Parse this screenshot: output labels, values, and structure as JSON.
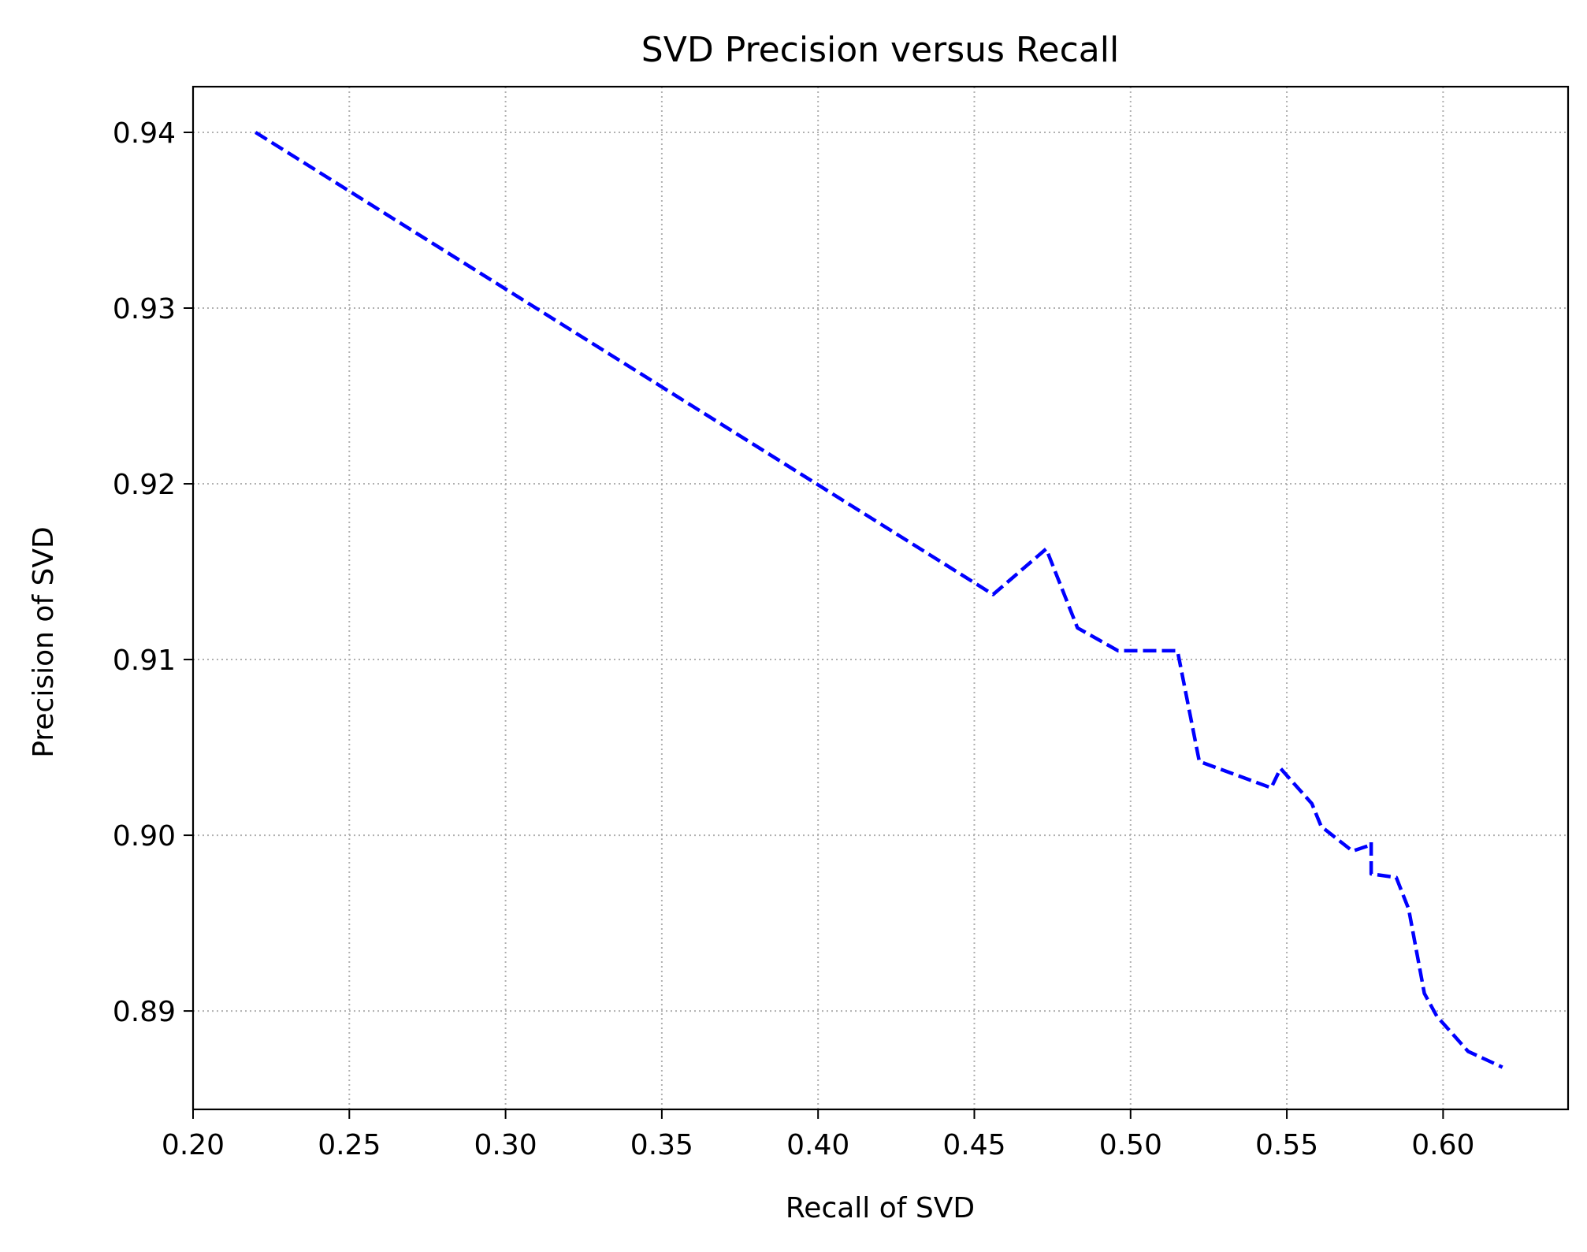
{
  "chart_data": {
    "type": "line",
    "title": "SVD Precision versus Recall",
    "xlabel": "Recall of SVD",
    "ylabel": "Precision of SVD",
    "xlim": [
      0.2,
      0.64
    ],
    "ylim": [
      0.8844,
      0.9426
    ],
    "x_ticks": [
      0.2,
      0.25,
      0.3,
      0.35,
      0.4,
      0.45,
      0.5,
      0.55,
      0.6
    ],
    "x_tick_labels": [
      "0.20",
      "0.25",
      "0.30",
      "0.35",
      "0.40",
      "0.45",
      "0.50",
      "0.55",
      "0.60"
    ],
    "y_ticks": [
      0.89,
      0.9,
      0.91,
      0.92,
      0.93,
      0.94
    ],
    "y_tick_labels": [
      "0.89",
      "0.90",
      "0.91",
      "0.92",
      "0.93",
      "0.94"
    ],
    "grid": true,
    "series": [
      {
        "color": "#0000ff",
        "line_style": "dashed",
        "x": [
          0.22,
          0.456,
          0.473,
          0.483,
          0.496,
          0.515,
          0.522,
          0.545,
          0.548,
          0.558,
          0.561,
          0.571,
          0.576,
          0.577,
          0.577,
          0.585,
          0.589,
          0.594,
          0.598,
          0.608,
          0.619
        ],
        "y": [
          0.94,
          0.9137,
          0.9163,
          0.9118,
          0.9105,
          0.9105,
          0.9042,
          0.9027,
          0.9038,
          0.9018,
          0.9005,
          0.8991,
          0.8994,
          0.8996,
          0.8978,
          0.8976,
          0.8958,
          0.891,
          0.8897,
          0.8877,
          0.8868
        ]
      }
    ]
  }
}
